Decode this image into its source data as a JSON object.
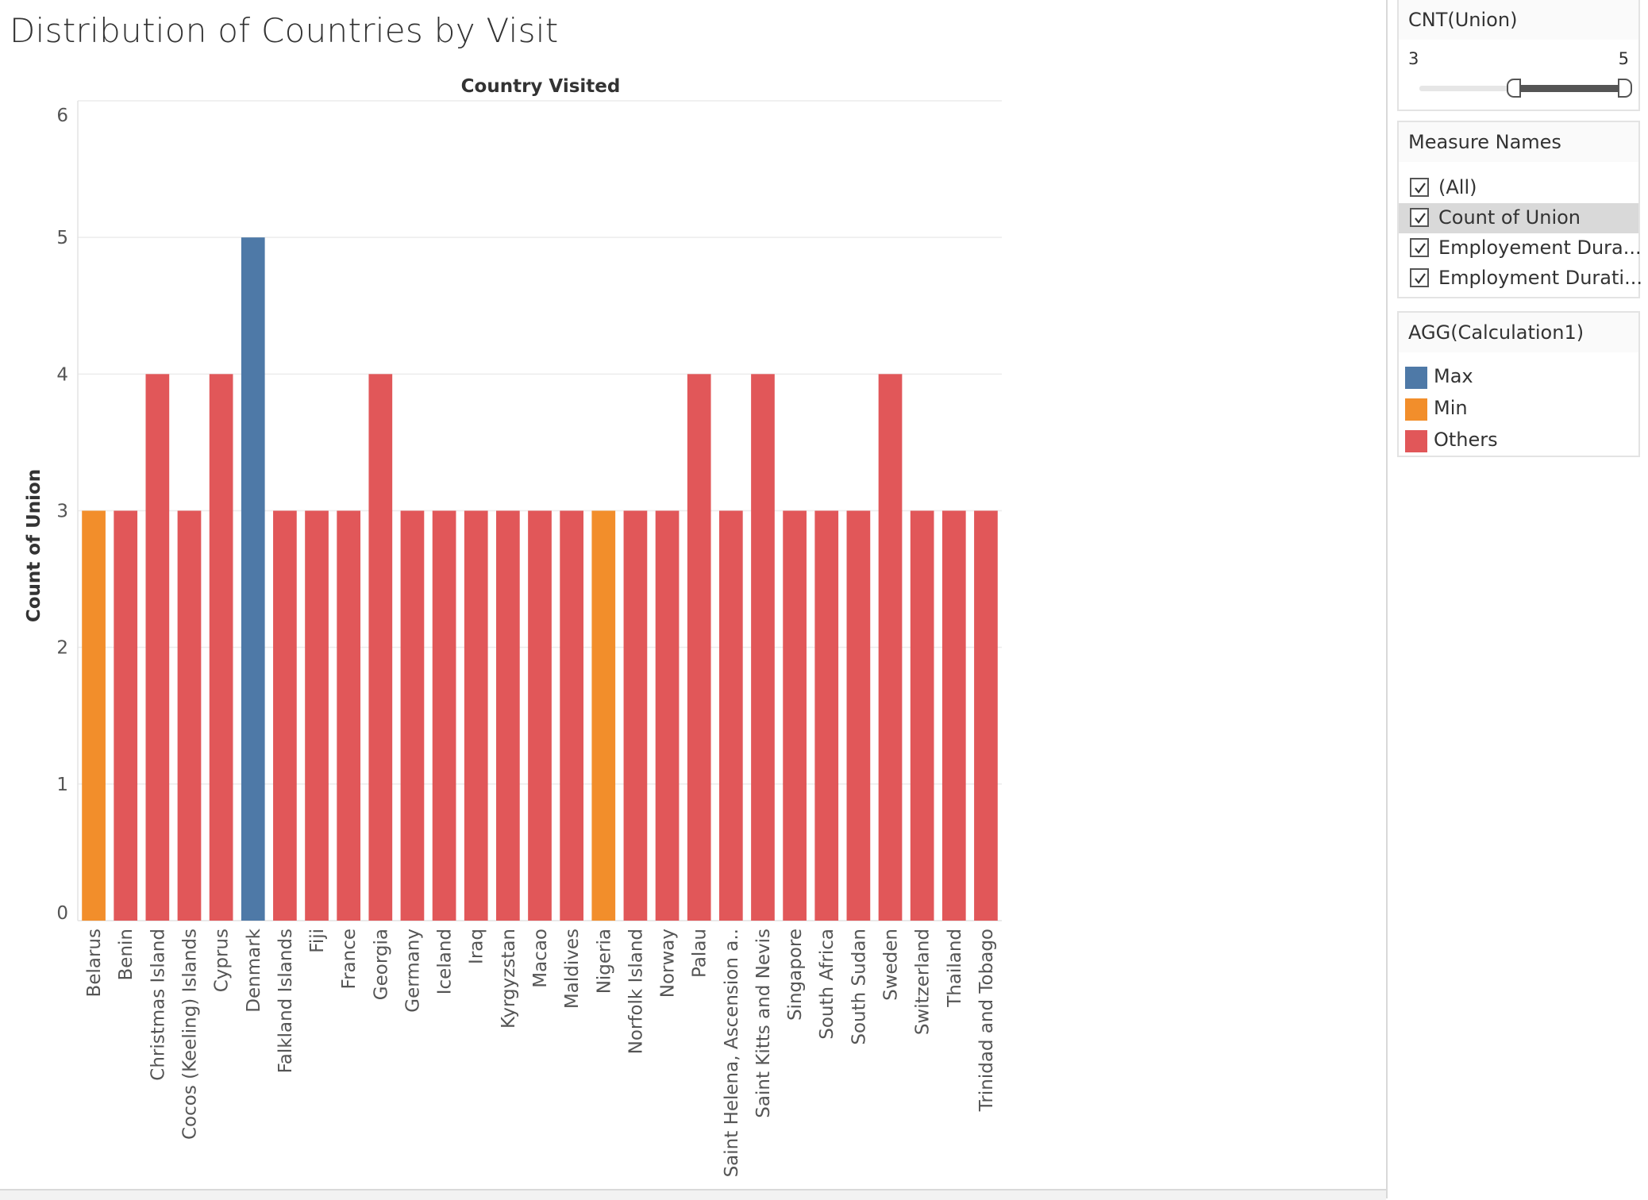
{
  "title": "Distribution of Countries by Visit",
  "chart_data": {
    "type": "bar",
    "column_header": "Country Visited",
    "ylabel": "Count of Union",
    "ylim": [
      0,
      6
    ],
    "yticks": [
      0,
      1,
      2,
      3,
      4,
      5,
      6
    ],
    "grid": true,
    "categories": [
      "Belarus",
      "Benin",
      "Christmas Island",
      "Cocos (Keeling) Islands",
      "Cyprus",
      "Denmark",
      "Falkland Islands",
      "Fiji",
      "France",
      "Georgia",
      "Germany",
      "Iceland",
      "Iraq",
      "Kyrgyzstan",
      "Macao",
      "Maldives",
      "Nigeria",
      "Norfolk Island",
      "Norway",
      "Palau",
      "Saint Helena, Ascension a..",
      "Saint Kitts and Nevis",
      "Singapore",
      "South Africa",
      "South Sudan",
      "Sweden",
      "Switzerland",
      "Thailand",
      "Trinidad and Tobago"
    ],
    "values": [
      3,
      3,
      4,
      3,
      4,
      5,
      3,
      3,
      3,
      4,
      3,
      3,
      3,
      3,
      3,
      3,
      3,
      3,
      3,
      4,
      3,
      4,
      3,
      3,
      3,
      4,
      3,
      3,
      3
    ],
    "groups": [
      "Min",
      "Others",
      "Others",
      "Others",
      "Others",
      "Max",
      "Others",
      "Others",
      "Others",
      "Others",
      "Others",
      "Others",
      "Others",
      "Others",
      "Others",
      "Others",
      "Min",
      "Others",
      "Others",
      "Others",
      "Others",
      "Others",
      "Others",
      "Others",
      "Others",
      "Others",
      "Others",
      "Others",
      "Others"
    ],
    "colors": {
      "Max": "#4e79a7",
      "Min": "#f28e2b",
      "Others": "#e15759"
    }
  },
  "filter_cnt": {
    "title": "CNT(Union)",
    "min_label": "3",
    "max_label": "5"
  },
  "measure_names": {
    "title": "Measure Names",
    "items": [
      {
        "label": "(All)",
        "checked": true
      },
      {
        "label": "Count of Union",
        "checked": true
      },
      {
        "label": "Employement Dura...",
        "checked": true
      },
      {
        "label": "Employment Durati...",
        "checked": true
      }
    ]
  },
  "legend": {
    "title": "AGG(Calculation1)",
    "items": [
      {
        "label": "Max",
        "color": "#4e79a7"
      },
      {
        "label": "Min",
        "color": "#f28e2b"
      },
      {
        "label": "Others",
        "color": "#e15759"
      }
    ]
  }
}
